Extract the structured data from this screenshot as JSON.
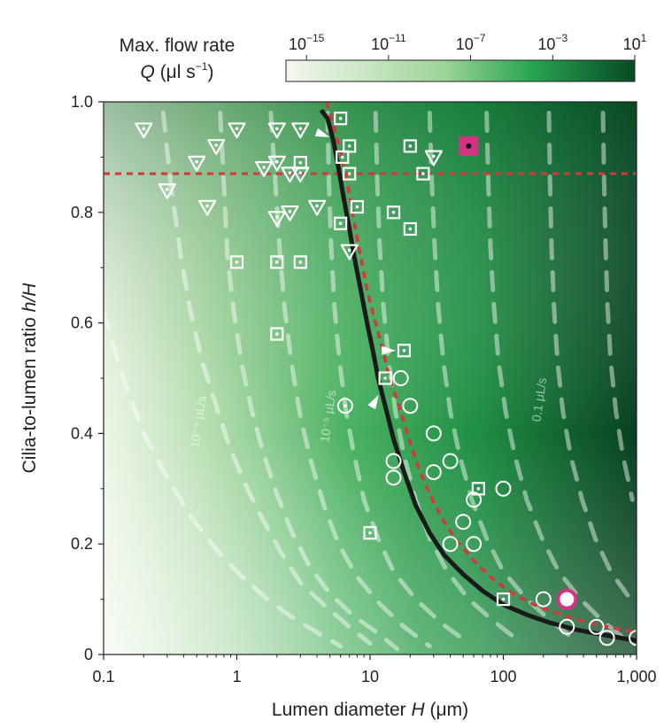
{
  "chart_data": {
    "type": "heatmap",
    "xlabel_prefix": "Lumen diameter ",
    "xlabel_var": "H",
    "xlabel_unit": " (μm)",
    "ylabel_prefix": "Cilia-to-lumen ratio ",
    "ylabel_var": "h/H",
    "x_scale": "log",
    "x_range": [
      0.1,
      1000
    ],
    "y_range": [
      0,
      1.0
    ],
    "x_ticks": [
      {
        "value": 0.1,
        "label": "0.1"
      },
      {
        "value": 1,
        "label": "1"
      },
      {
        "value": 10,
        "label": "10"
      },
      {
        "value": 100,
        "label": "100"
      },
      {
        "value": 1000,
        "label": "1,000"
      }
    ],
    "y_ticks": [
      {
        "value": 0,
        "label": "0"
      },
      {
        "value": 0.2,
        "label": "0.2"
      },
      {
        "value": 0.4,
        "label": "0.4"
      },
      {
        "value": 0.6,
        "label": "0.6"
      },
      {
        "value": 0.8,
        "label": "0.8"
      },
      {
        "value": 1.0,
        "label": "1.0"
      }
    ],
    "colorbar": {
      "title_line1": "Max. flow rate",
      "title_line2_var": "Q",
      "title_line2_unit": " (μl s",
      "title_line2_exp": "−1",
      "title_line2_close": ")",
      "scale": "log",
      "range": [
        1e-16,
        10
      ],
      "ticks": [
        {
          "base": "10",
          "exp": "−15",
          "log": -15
        },
        {
          "base": "10",
          "exp": "−11",
          "log": -11
        },
        {
          "base": "10",
          "exp": "−7",
          "log": -7
        },
        {
          "base": "10",
          "exp": "−3",
          "log": -3
        },
        {
          "base": "10",
          "exp": "1",
          "log": 1
        }
      ],
      "color_low": "#f4f8ee",
      "color_mid": "#2aa552",
      "color_high": "#074a25"
    },
    "contour_labels": [
      {
        "text": "10⁻⁹ μL/s",
        "x": 0.55,
        "y": 0.42
      },
      {
        "text": "10⁻⁵ μL/s",
        "x": 5.2,
        "y": 0.43
      },
      {
        "text": "0.1 μL/s",
        "x": 200,
        "y": 0.46
      }
    ],
    "optimal_curve": {
      "color": "#1a1a1a",
      "points": [
        [
          4.3,
          0.985
        ],
        [
          4.8,
          0.97
        ],
        [
          5.3,
          0.93
        ],
        [
          5.8,
          0.88
        ],
        [
          6.3,
          0.83
        ],
        [
          7,
          0.77
        ],
        [
          7.6,
          0.72
        ],
        [
          8.5,
          0.66
        ],
        [
          9.5,
          0.6
        ],
        [
          10.5,
          0.55
        ],
        [
          11.5,
          0.5
        ],
        [
          13,
          0.45
        ],
        [
          15,
          0.39
        ],
        [
          18,
          0.33
        ],
        [
          22,
          0.27
        ],
        [
          28,
          0.22
        ],
        [
          36,
          0.18
        ],
        [
          50,
          0.145
        ],
        [
          70,
          0.115
        ],
        [
          100,
          0.09
        ],
        [
          150,
          0.072
        ],
        [
          220,
          0.058
        ],
        [
          350,
          0.045
        ],
        [
          550,
          0.036
        ],
        [
          1000,
          0.025
        ]
      ]
    },
    "red_curve": {
      "color": "#d13a3a",
      "points": [
        [
          4.7,
          1.0
        ],
        [
          5.3,
          0.96
        ],
        [
          6,
          0.91
        ],
        [
          6.8,
          0.85
        ],
        [
          7.5,
          0.79
        ],
        [
          8.5,
          0.72
        ],
        [
          9.5,
          0.66
        ],
        [
          11,
          0.6
        ],
        [
          12.5,
          0.55
        ],
        [
          14,
          0.5
        ],
        [
          16.5,
          0.45
        ],
        [
          19,
          0.4
        ],
        [
          23,
          0.34
        ],
        [
          28,
          0.29
        ],
        [
          35,
          0.245
        ],
        [
          45,
          0.205
        ],
        [
          60,
          0.17
        ],
        [
          80,
          0.14
        ],
        [
          110,
          0.115
        ],
        [
          160,
          0.093
        ],
        [
          230,
          0.078
        ],
        [
          350,
          0.064
        ],
        [
          550,
          0.052
        ],
        [
          1000,
          0.04
        ]
      ]
    },
    "red_line_y": 0.87,
    "contours": [
      [
        [
          0.1,
          0.62
        ],
        [
          0.14,
          0.5
        ],
        [
          0.2,
          0.4
        ],
        [
          0.3,
          0.32
        ],
        [
          0.45,
          0.25
        ],
        [
          0.7,
          0.19
        ],
        [
          1.1,
          0.14
        ],
        [
          1.7,
          0.1
        ],
        [
          2.5,
          0.07
        ],
        [
          4,
          0.04
        ],
        [
          6,
          0.015
        ]
      ],
      [
        [
          0.28,
          0.98
        ],
        [
          0.32,
          0.85
        ],
        [
          0.38,
          0.72
        ],
        [
          0.45,
          0.62
        ],
        [
          0.55,
          0.53
        ],
        [
          0.7,
          0.45
        ],
        [
          0.9,
          0.37
        ],
        [
          1.2,
          0.3
        ],
        [
          1.6,
          0.24
        ],
        [
          2.2,
          0.18
        ],
        [
          3,
          0.13
        ],
        [
          4.5,
          0.09
        ],
        [
          7,
          0.05
        ],
        [
          10,
          0.02
        ]
      ],
      [
        [
          0.75,
          0.98
        ],
        [
          0.8,
          0.85
        ],
        [
          0.85,
          0.72
        ],
        [
          0.95,
          0.62
        ],
        [
          1.1,
          0.52
        ],
        [
          1.3,
          0.44
        ],
        [
          1.6,
          0.36
        ],
        [
          2,
          0.29
        ],
        [
          2.6,
          0.22
        ],
        [
          3.5,
          0.16
        ],
        [
          5,
          0.11
        ],
        [
          7.5,
          0.07
        ],
        [
          12,
          0.035
        ],
        [
          16,
          0.01
        ]
      ],
      [
        [
          1.8,
          0.98
        ],
        [
          1.95,
          0.85
        ],
        [
          2.1,
          0.73
        ],
        [
          2.3,
          0.62
        ],
        [
          2.6,
          0.52
        ],
        [
          3,
          0.43
        ],
        [
          3.6,
          0.35
        ],
        [
          4.5,
          0.27
        ],
        [
          5.8,
          0.2
        ],
        [
          8,
          0.14
        ],
        [
          12,
          0.09
        ],
        [
          18,
          0.05
        ],
        [
          28,
          0.015
        ]
      ],
      [
        [
          4.8,
          0.98
        ],
        [
          4.9,
          0.86
        ],
        [
          5.1,
          0.74
        ],
        [
          5.4,
          0.63
        ],
        [
          5.9,
          0.53
        ],
        [
          6.6,
          0.44
        ],
        [
          7.6,
          0.36
        ],
        [
          9,
          0.28
        ],
        [
          11.5,
          0.21
        ],
        [
          15,
          0.15
        ],
        [
          22,
          0.1
        ],
        [
          35,
          0.055
        ],
        [
          55,
          0.02
        ]
      ],
      [
        [
          11,
          0.98
        ],
        [
          11.3,
          0.86
        ],
        [
          11.8,
          0.74
        ],
        [
          12.6,
          0.63
        ],
        [
          13.8,
          0.53
        ],
        [
          15.5,
          0.44
        ],
        [
          18,
          0.36
        ],
        [
          22,
          0.28
        ],
        [
          28,
          0.21
        ],
        [
          38,
          0.15
        ],
        [
          55,
          0.1
        ],
        [
          85,
          0.06
        ],
        [
          130,
          0.025
        ]
      ],
      [
        [
          28,
          0.98
        ],
        [
          29,
          0.86
        ],
        [
          30.5,
          0.74
        ],
        [
          32.5,
          0.63
        ],
        [
          35.5,
          0.53
        ],
        [
          40,
          0.44
        ],
        [
          47,
          0.36
        ],
        [
          58,
          0.28
        ],
        [
          75,
          0.21
        ],
        [
          100,
          0.15
        ],
        [
          150,
          0.1
        ],
        [
          230,
          0.06
        ],
        [
          350,
          0.025
        ]
      ],
      [
        [
          75,
          0.98
        ],
        [
          77,
          0.86
        ],
        [
          80,
          0.74
        ],
        [
          85,
          0.63
        ],
        [
          92,
          0.53
        ],
        [
          104,
          0.44
        ],
        [
          122,
          0.36
        ],
        [
          150,
          0.28
        ],
        [
          195,
          0.21
        ],
        [
          260,
          0.15
        ],
        [
          380,
          0.1
        ],
        [
          560,
          0.06
        ],
        [
          850,
          0.025
        ]
      ],
      [
        [
          220,
          0.98
        ],
        [
          224,
          0.86
        ],
        [
          230,
          0.74
        ],
        [
          240,
          0.63
        ],
        [
          255,
          0.53
        ],
        [
          280,
          0.44
        ],
        [
          320,
          0.36
        ],
        [
          390,
          0.28
        ],
        [
          490,
          0.21
        ],
        [
          640,
          0.15
        ],
        [
          900,
          0.1
        ]
      ],
      [
        [
          560,
          0.98
        ],
        [
          570,
          0.86
        ],
        [
          585,
          0.74
        ],
        [
          605,
          0.63
        ],
        [
          640,
          0.53
        ],
        [
          700,
          0.44
        ],
        [
          790,
          0.36
        ],
        [
          930,
          0.28
        ]
      ]
    ],
    "triangles": [
      [
        0.2,
        0.95
      ],
      [
        0.3,
        0.84
      ],
      [
        0.5,
        0.89
      ],
      [
        0.6,
        0.81
      ],
      [
        0.7,
        0.92
      ],
      [
        1.0,
        0.95
      ],
      [
        1.6,
        0.88
      ],
      [
        2.0,
        0.89
      ],
      [
        2.0,
        0.95
      ],
      [
        2.5,
        0.87
      ],
      [
        3.0,
        0.87
      ],
      [
        3.0,
        0.95
      ],
      [
        2.0,
        0.79
      ],
      [
        2.5,
        0.8
      ],
      [
        4.0,
        0.81
      ],
      [
        7.0,
        0.73
      ],
      [
        30,
        0.9
      ]
    ],
    "squares": [
      [
        1.0,
        0.71
      ],
      [
        2.0,
        0.71
      ],
      [
        3.0,
        0.71
      ],
      [
        2.0,
        0.58
      ],
      [
        3.0,
        0.89
      ],
      [
        6.0,
        0.97
      ],
      [
        6.2,
        0.9
      ],
      [
        7.0,
        0.92
      ],
      [
        7.0,
        0.87
      ],
      [
        8.0,
        0.81
      ],
      [
        6.0,
        0.78
      ],
      [
        15,
        0.8
      ],
      [
        20,
        0.77
      ],
      [
        20,
        0.92
      ],
      [
        25,
        0.87
      ],
      [
        18,
        0.55
      ],
      [
        13,
        0.5
      ],
      [
        10,
        0.22
      ],
      [
        65,
        0.3
      ],
      [
        100,
        0.1
      ]
    ],
    "dotted_circles": [
      [
        6.5,
        0.45
      ]
    ],
    "circles": [
      [
        17,
        0.5
      ],
      [
        20,
        0.45
      ],
      [
        15,
        0.35
      ],
      [
        15,
        0.32
      ],
      [
        30,
        0.4
      ],
      [
        30,
        0.33
      ],
      [
        40,
        0.35
      ],
      [
        40,
        0.2
      ],
      [
        50,
        0.24
      ],
      [
        60,
        0.28
      ],
      [
        60,
        0.2
      ],
      [
        100,
        0.3
      ],
      [
        200,
        0.1
      ],
      [
        300,
        0.05
      ],
      [
        500,
        0.05
      ],
      [
        600,
        0.03
      ],
      [
        1000,
        0.03
      ]
    ],
    "highlight_square": {
      "x": 55,
      "y": 0.92,
      "color": "#d43384"
    },
    "highlight_circle": {
      "x": 300,
      "y": 0.1,
      "color": "#d43384"
    },
    "arrows": [
      [
        4.5,
        0.94
      ],
      [
        14,
        0.55
      ],
      [
        11,
        0.46
      ]
    ]
  }
}
